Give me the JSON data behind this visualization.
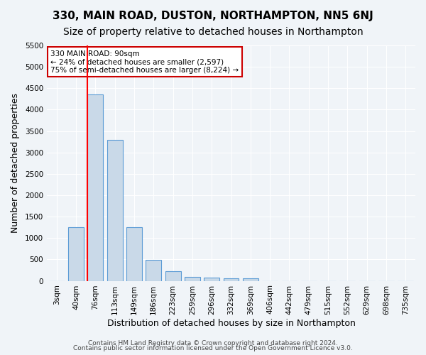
{
  "title": "330, MAIN ROAD, DUSTON, NORTHAMPTON, NN5 6NJ",
  "subtitle": "Size of property relative to detached houses in Northampton",
  "xlabel": "Distribution of detached houses by size in Northampton",
  "ylabel": "Number of detached properties",
  "bin_labels": [
    "3sqm",
    "40sqm",
    "76sqm",
    "113sqm",
    "149sqm",
    "186sqm",
    "223sqm",
    "259sqm",
    "296sqm",
    "332sqm",
    "369sqm",
    "406sqm",
    "442sqm",
    "479sqm",
    "515sqm",
    "552sqm",
    "629sqm",
    "698sqm",
    "735sqm"
  ],
  "bar_values": [
    0,
    1260,
    4350,
    3300,
    1260,
    490,
    220,
    90,
    70,
    55,
    55,
    0,
    0,
    0,
    0,
    0,
    0,
    0,
    0
  ],
  "bar_color": "#c9d9e8",
  "bar_edge_color": "#5b9bd5",
  "red_line_x": 2,
  "red_line_color": "#ff0000",
  "annotation_text": "330 MAIN ROAD: 90sqm\n← 24% of detached houses are smaller (2,597)\n75% of semi-detached houses are larger (8,224) →",
  "annotation_box_color": "#ffffff",
  "annotation_box_edge": "#cc0000",
  "ylim": [
    0,
    5500
  ],
  "yticks": [
    0,
    500,
    1000,
    1500,
    2000,
    2500,
    3000,
    3500,
    4000,
    4500,
    5000,
    5500
  ],
  "footer1": "Contains HM Land Registry data © Crown copyright and database right 2024.",
  "footer2": "Contains public sector information licensed under the Open Government Licence v3.0.",
  "background_color": "#f0f4f8",
  "grid_color": "#ffffff",
  "title_fontsize": 11,
  "subtitle_fontsize": 10,
  "axis_label_fontsize": 9,
  "tick_fontsize": 7.5,
  "footer_fontsize": 6.5
}
